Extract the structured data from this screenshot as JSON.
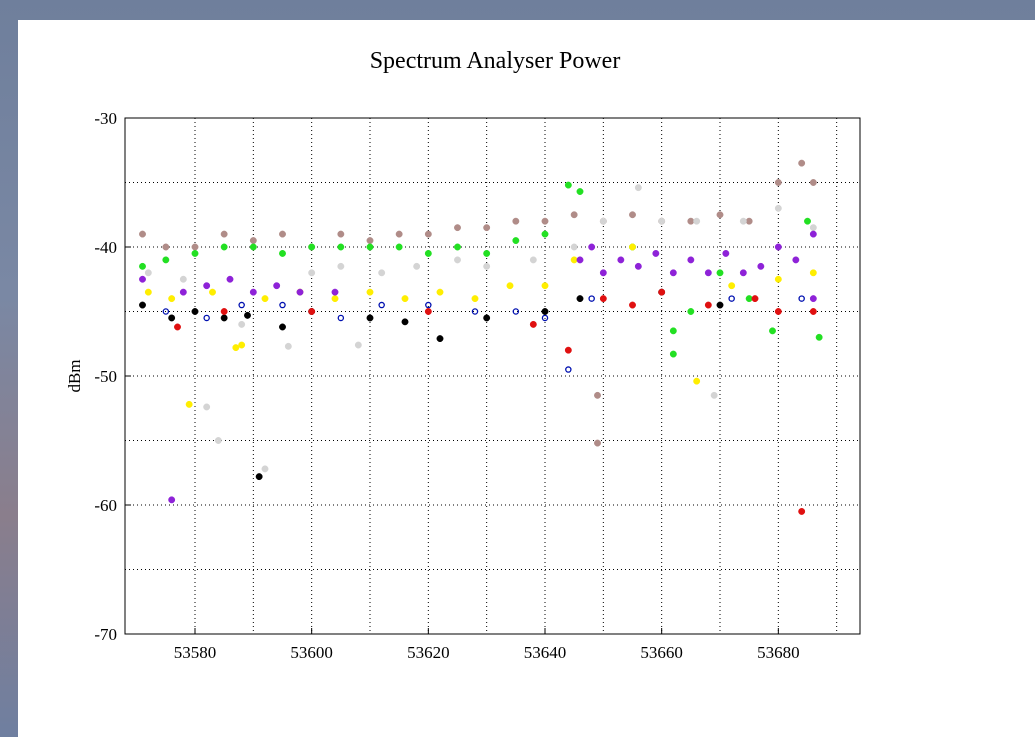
{
  "chart_data": {
    "type": "scatter",
    "title": "Spectrum Analyser Power",
    "y_label": "dBm",
    "xlim": [
      53568,
      53694
    ],
    "ylim": [
      -70,
      -30
    ],
    "xticks": [
      53580,
      53600,
      53620,
      53640,
      53660,
      53680
    ],
    "yticks": [
      -70,
      -60,
      -50,
      -40,
      -30
    ],
    "xminor": [
      53590,
      53610,
      53630,
      53650,
      53670,
      53690
    ],
    "yminor": [
      -65,
      -55,
      -45,
      -35
    ],
    "grid": true,
    "series": [
      {
        "color": "#b08c88",
        "marker": "filled",
        "x": [
          53571,
          53575,
          53580,
          53585,
          53590,
          53595,
          53600,
          53605,
          53610,
          53615,
          53620,
          53625,
          53630,
          53635,
          53640,
          53645,
          53650,
          53655,
          53660,
          53665,
          53670,
          53675,
          53680,
          53684,
          53686,
          53649,
          53649
        ],
        "values": [
          -39,
          -40,
          -40,
          -39,
          -39.5,
          -39,
          -40,
          -39,
          -39.5,
          -39,
          -39,
          -38.5,
          -38.5,
          -38,
          -38,
          -37.5,
          -38,
          -37.5,
          -38,
          -38,
          -37.5,
          -38,
          -35,
          -33.5,
          -35,
          -51.5,
          -55.2
        ]
      },
      {
        "color": "#22e022",
        "marker": "filled",
        "x": [
          53571,
          53575,
          53580,
          53585,
          53590,
          53595,
          53600,
          53605,
          53610,
          53615,
          53620,
          53625,
          53630,
          53635,
          53640,
          53644,
          53646,
          53655,
          53662,
          53662,
          53665,
          53670,
          53675,
          53679,
          53685,
          53687
        ],
        "values": [
          -41.5,
          -41,
          -40.5,
          -40,
          -40,
          -40.5,
          -40,
          -40,
          -40,
          -40,
          -40.5,
          -40,
          -40.5,
          -39.5,
          -39,
          -35.2,
          -35.7,
          -40,
          -48.3,
          -46.5,
          -45,
          -42,
          -44,
          -46.5,
          -38,
          -47
        ]
      },
      {
        "color": "#d4d4d4",
        "marker": "filled",
        "x": [
          53572,
          53578,
          53582,
          53584,
          53588,
          53592,
          53596,
          53600,
          53605,
          53608,
          53612,
          53618,
          53625,
          53630,
          53638,
          53645,
          53650,
          53656,
          53660,
          53666,
          53669,
          53674,
          53680,
          53686
        ],
        "values": [
          -42,
          -42.5,
          -52.4,
          -55,
          -46,
          -57.2,
          -47.7,
          -42,
          -41.5,
          -47.6,
          -42,
          -41.5,
          -41,
          -41.5,
          -41,
          -40,
          -38,
          -35.4,
          -38,
          -38,
          -51.5,
          -38,
          -37,
          -38.5
        ]
      },
      {
        "color": "#ffee00",
        "marker": "filled",
        "x": [
          53572,
          53576,
          53579,
          53583,
          53587,
          53588,
          53592,
          53598,
          53604,
          53610,
          53616,
          53622,
          53628,
          53634,
          53640,
          53645,
          53655,
          53666,
          53672,
          53680,
          53686
        ],
        "values": [
          -43.5,
          -44,
          -52.2,
          -43.5,
          -47.8,
          -47.6,
          -44,
          -43.5,
          -44,
          -43.5,
          -44,
          -43.5,
          -44,
          -43,
          -43,
          -41,
          -40,
          -50.4,
          -43,
          -42.5,
          -42
        ]
      },
      {
        "color": "#0010b0",
        "marker": "open",
        "x": [
          53575,
          53582,
          53588,
          53595,
          53600,
          53605,
          53612,
          53620,
          53628,
          53635,
          53640,
          53644,
          53648,
          53660,
          53672,
          53684
        ],
        "values": [
          -45,
          -45.5,
          -44.5,
          -44.5,
          -45,
          -45.5,
          -44.5,
          -44.5,
          -45,
          -45,
          -45.5,
          -49.5,
          -44,
          -43.5,
          -44,
          -44
        ]
      },
      {
        "color": "#000000",
        "marker": "filled",
        "x": [
          53571,
          53576,
          53580,
          53585,
          53589,
          53591,
          53595,
          53600,
          53610,
          53616,
          53622,
          53630,
          53640,
          53646,
          53660,
          53670
        ],
        "values": [
          -44.5,
          -45.5,
          -45,
          -45.5,
          -45.3,
          -57.8,
          -46.2,
          -45,
          -45.5,
          -45.8,
          -47.1,
          -45.5,
          -45,
          -44,
          -43.5,
          -44.5
        ]
      },
      {
        "color": "#e01010",
        "marker": "filled",
        "x": [
          53577,
          53585,
          53600,
          53620,
          53638,
          53644,
          53650,
          53655,
          53660,
          53668,
          53676,
          53680,
          53684,
          53686
        ],
        "values": [
          -46.2,
          -45,
          -45,
          -45,
          -46,
          -48,
          -44,
          -44.5,
          -43.5,
          -44.5,
          -44,
          -45,
          -60.5,
          -45
        ]
      },
      {
        "color": "#8e22d8",
        "marker": "filled",
        "x": [
          53571,
          53576,
          53578,
          53582,
          53586,
          53590,
          53594,
          53598,
          53604,
          53646,
          53648,
          53650,
          53653,
          53656,
          53659,
          53662,
          53665,
          53668,
          53671,
          53674,
          53677,
          53680,
          53683,
          53686,
          53686
        ],
        "values": [
          -42.5,
          -59.6,
          -43.5,
          -43,
          -42.5,
          -43.5,
          -43,
          -43.5,
          -43.5,
          -41,
          -40,
          -42,
          -41,
          -41.5,
          -40.5,
          -42,
          -41,
          -42,
          -40.5,
          -42,
          -41.5,
          -40,
          -41,
          -39,
          -44
        ]
      }
    ]
  }
}
